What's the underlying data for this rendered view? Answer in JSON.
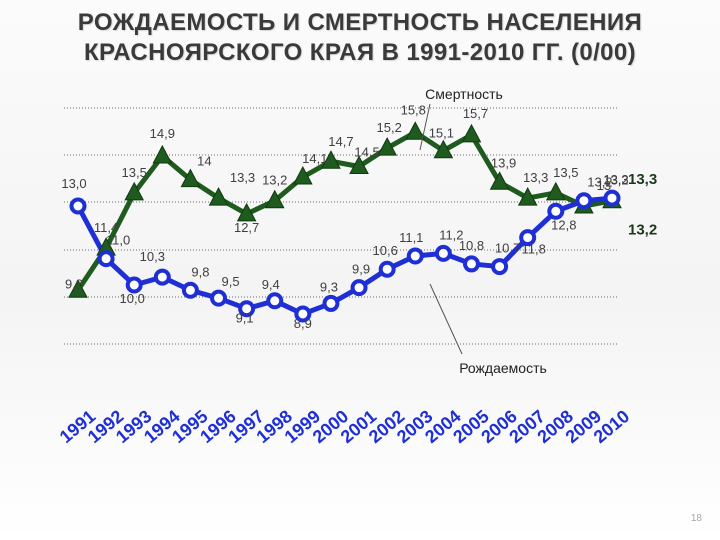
{
  "slide": {
    "title_line1": "РОЖДАЕМОСТЬ И СМЕРТНОСТЬ НАСЕЛЕНИЯ",
    "title_line2": "КРАСНОЯРСКОГО КРАЯ  В 1991-2010 ГГ. (0/00)",
    "page_number": "18"
  },
  "chart_data": {
    "type": "line",
    "title": "",
    "xlabel": "",
    "ylabel": "",
    "ylim": [
      7,
      19
    ],
    "grid": true,
    "categories": [
      "1991",
      "1992",
      "1993",
      "1994",
      "1995",
      "1996",
      "1997",
      "1998",
      "1999",
      "2000",
      "2001",
      "2002",
      "2003",
      "2004",
      "2005",
      "2006",
      "2007",
      "2008",
      "2009",
      "2010"
    ],
    "series": [
      {
        "name": "Смертность",
        "color": "#1f5a1f",
        "marker": "triangle",
        "values": [
          9.8,
          11.4,
          13.5,
          14.9,
          14.0,
          13.3,
          12.7,
          13.2,
          14.1,
          14.7,
          14.5,
          15.2,
          15.8,
          15.1,
          15.7,
          13.9,
          13.3,
          13.5,
          13.0,
          13.2
        ],
        "labels": [
          "9,8",
          "11,4",
          "13,5",
          "14,9",
          "14",
          "13,3",
          "12,7",
          "13,2",
          "14,1",
          "14,7",
          "14,5",
          "15,2",
          "15,8",
          "15,1",
          "15,7",
          "13,9",
          "13,3",
          "13,5",
          "13",
          "13,2"
        ],
        "end_label": "13,2"
      },
      {
        "name": "Рождаемость",
        "color": "#1f2fd6",
        "marker": "circle",
        "values": [
          13.0,
          11.0,
          10.0,
          10.3,
          9.8,
          9.5,
          9.1,
          9.4,
          8.9,
          9.3,
          9.9,
          10.6,
          11.1,
          11.2,
          10.8,
          10.7,
          11.8,
          12.8,
          13.2,
          13.3
        ],
        "labels": [
          "13,0",
          "11,0",
          "10,0",
          "10,3",
          "9,8",
          "9,5",
          "9,1",
          "9,4",
          "8,9",
          "9,3",
          "9,9",
          "10,6",
          "11,1",
          "11,2",
          "10,8",
          "10,7",
          "11,8",
          "12,8",
          "13,2",
          "13,3"
        ],
        "end_label": "13,3"
      }
    ]
  }
}
